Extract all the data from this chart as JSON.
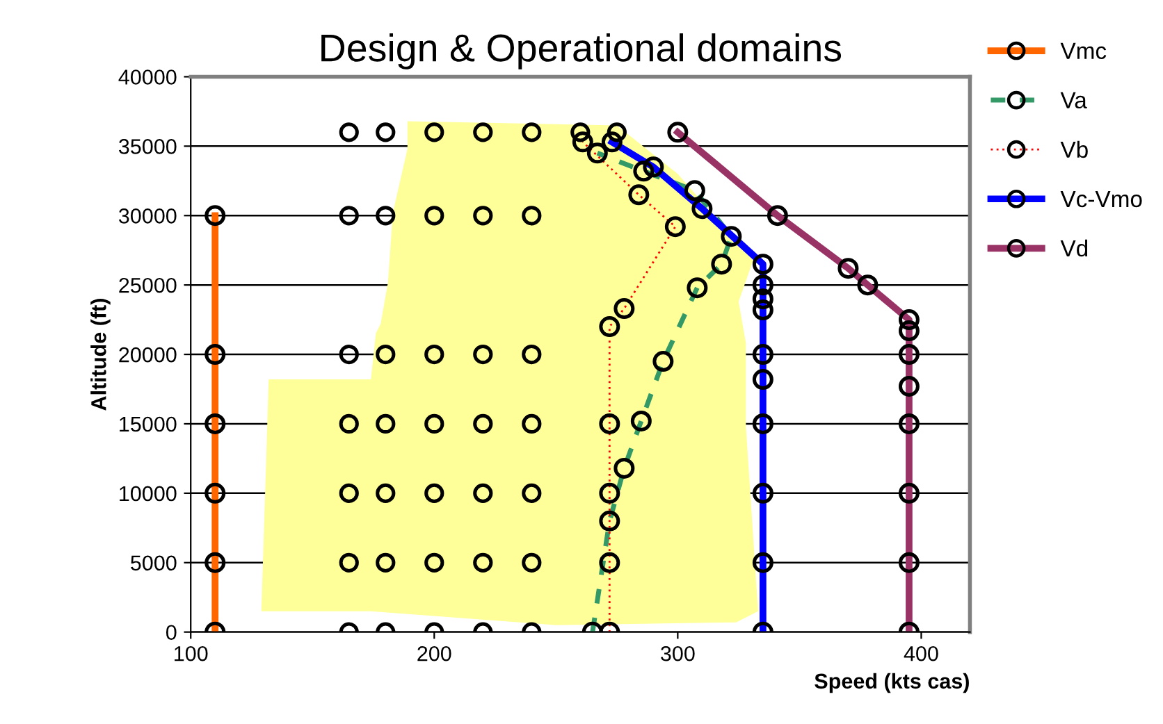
{
  "chart_data": {
    "type": "line",
    "title": "Design & Operational domains",
    "xlabel": "Speed (kts cas)",
    "ylabel": "Altitude (ft)",
    "xlim": [
      100,
      420
    ],
    "xticks": [
      100,
      200,
      300,
      400
    ],
    "ylim": [
      0,
      40000
    ],
    "yticks": [
      0,
      5000,
      10000,
      15000,
      20000,
      25000,
      30000,
      35000,
      40000
    ],
    "grid": "y",
    "legend": "top right",
    "marker": "circle",
    "series": [
      {
        "type": "area",
        "marker": "none",
        "color": "#ffff99",
        "x": [
          189,
          275,
          300,
          331,
          325,
          328,
          328,
          333,
          324,
          250,
          174,
          129,
          131,
          132,
          174,
          176,
          178,
          181,
          183,
          189
        ],
        "values": [
          36800,
          36500,
          33000,
          26800,
          23800,
          20800,
          14800,
          1500,
          700,
          500,
          1500,
          1500,
          12500,
          18200,
          18200,
          21500,
          22200,
          25200,
          30200,
          34800
        ]
      },
      {
        "type": "scatter",
        "color": "#000000",
        "x": [
          165,
          180,
          200,
          220,
          240,
          260,
          275,
          165,
          180,
          200,
          220,
          240,
          165,
          180,
          200,
          220,
          240,
          165,
          180,
          200,
          220,
          240,
          165,
          180,
          200,
          220,
          240,
          165,
          180,
          200,
          220,
          240,
          165,
          180,
          200,
          220,
          240
        ],
        "values": [
          36000,
          36000,
          36000,
          36000,
          36000,
          36000,
          36000,
          30000,
          30000,
          30000,
          30000,
          30000,
          20000,
          20000,
          20000,
          20000,
          20000,
          15000,
          15000,
          15000,
          15000,
          15000,
          10000,
          10000,
          10000,
          10000,
          10000,
          5000,
          5000,
          5000,
          5000,
          5000,
          0,
          0,
          0,
          0,
          0
        ]
      },
      {
        "name": "Vmc",
        "color": "#ff6600",
        "x": [
          110,
          110,
          110,
          110,
          110,
          110
        ],
        "values": [
          0,
          5000,
          10000,
          15000,
          20000,
          30000
        ]
      },
      {
        "name": "Va",
        "color": "#339966",
        "line_style": "dashed",
        "x": [
          265,
          272,
          278,
          285,
          294,
          308,
          318,
          322,
          307,
          286,
          267
        ],
        "values": [
          0,
          8000,
          11800,
          15200,
          19500,
          24800,
          26500,
          28500,
          31800,
          33200,
          34500
        ]
      },
      {
        "name": "Vb",
        "color": "#ff0000",
        "line_style": "dotted",
        "x": [
          272,
          272,
          272,
          272,
          272,
          278,
          299,
          284,
          261
        ],
        "values": [
          0,
          5000,
          10000,
          15000,
          22000,
          23300,
          29200,
          31500,
          35300
        ]
      },
      {
        "name": "Vc-Vmo",
        "color": "#0000ff",
        "x": [
          335,
          335,
          335,
          335,
          335,
          335,
          335,
          335,
          335,
          335,
          310,
          290,
          273
        ],
        "values": [
          0,
          5000,
          10000,
          15000,
          18200,
          20000,
          23200,
          24000,
          25000,
          26500,
          30500,
          33500,
          35300
        ]
      },
      {
        "name": "Vd",
        "color": "#993366",
        "x": [
          300,
          341,
          370,
          378,
          395,
          395,
          395,
          395,
          395,
          395,
          395,
          395
        ],
        "values": [
          36000,
          30000,
          26200,
          25000,
          22500,
          21700,
          20000,
          17700,
          15000,
          10000,
          5000,
          0
        ]
      }
    ]
  }
}
